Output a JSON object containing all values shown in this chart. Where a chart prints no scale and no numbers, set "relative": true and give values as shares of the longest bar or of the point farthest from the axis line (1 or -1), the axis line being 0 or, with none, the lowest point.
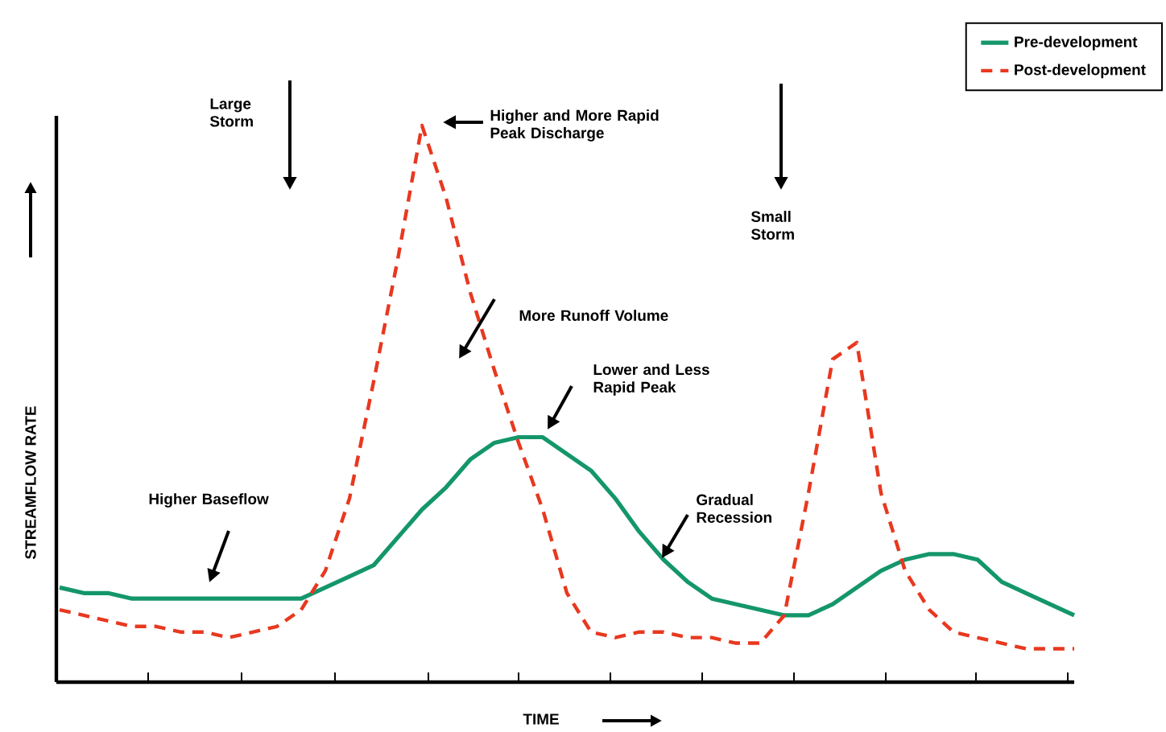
{
  "chart_data": {
    "type": "line",
    "relative": true,
    "xlabel": "TIME",
    "ylabel": "STREAMFLOW RATE",
    "categories": [
      null,
      null,
      null,
      null,
      null,
      null,
      null,
      null,
      null,
      null,
      null,
      null,
      null,
      null,
      null,
      null,
      null,
      null,
      null,
      null,
      null,
      null,
      null,
      null,
      null,
      null,
      null,
      null,
      null,
      null,
      null,
      null,
      null,
      null,
      null,
      null,
      null,
      null,
      null,
      null,
      null,
      null,
      null
    ],
    "series": [
      {
        "name": "Pre-development",
        "color": "#14966b",
        "line_style": "solid",
        "values": [
          0.17,
          0.16,
          0.16,
          0.15,
          0.15,
          0.15,
          0.15,
          0.15,
          0.15,
          0.15,
          0.15,
          0.17,
          0.19,
          0.21,
          0.26,
          0.31,
          0.35,
          0.4,
          0.43,
          0.44,
          0.44,
          0.41,
          0.38,
          0.33,
          0.27,
          0.22,
          0.18,
          0.15,
          0.14,
          0.13,
          0.12,
          0.12,
          0.14,
          0.17,
          0.2,
          0.22,
          0.23,
          0.23,
          0.22,
          0.18,
          0.16,
          0.14,
          0.12
        ]
      },
      {
        "name": "Post-development",
        "color": "#e8381f",
        "line_style": "dashed",
        "values": [
          0.13,
          0.12,
          0.11,
          0.1,
          0.1,
          0.09,
          0.09,
          0.08,
          0.09,
          0.1,
          0.13,
          0.2,
          0.33,
          0.54,
          0.76,
          1,
          0.87,
          0.7,
          0.56,
          0.43,
          0.31,
          0.16,
          0.09,
          0.08,
          0.09,
          0.09,
          0.08,
          0.08,
          0.07,
          0.07,
          0.12,
          0.34,
          0.58,
          0.61,
          0.34,
          0.2,
          0.13,
          0.09,
          0.08,
          0.07,
          0.06,
          0.06,
          0.06
        ]
      }
    ],
    "annotations": [
      "Large Storm",
      "Higher and More Rapid Peak Discharge",
      "Small Storm",
      "More Runoff Volume",
      "Lower and Less Rapid Peak",
      "Higher Baseflow",
      "Gradual Recession"
    ],
    "legend": "top right",
    "tick_labels": false
  }
}
